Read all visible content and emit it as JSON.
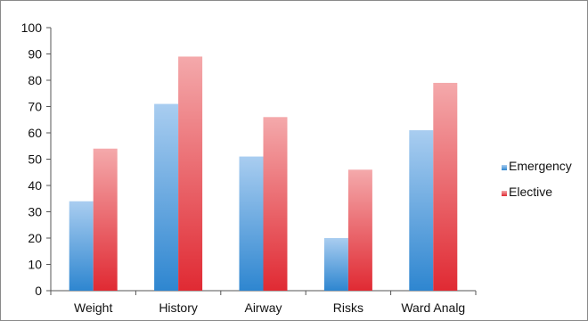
{
  "chart_data": {
    "type": "bar",
    "categories": [
      "Weight",
      "History",
      "Airway",
      "Risks",
      "Ward Analg"
    ],
    "series": [
      {
        "name": "Emergency",
        "values": [
          34,
          71,
          51,
          20,
          61
        ],
        "color_top": "#a9cdf0",
        "color_bottom": "#2e86d0"
      },
      {
        "name": "Elective",
        "values": [
          54,
          89,
          66,
          46,
          79
        ],
        "color_top": "#f4a9ab",
        "color_bottom": "#e02a33"
      }
    ],
    "title": "",
    "xlabel": "",
    "ylabel": "",
    "ylim": [
      0,
      100
    ],
    "yticks": [
      0,
      10,
      20,
      30,
      40,
      50,
      60,
      70,
      80,
      90,
      100
    ],
    "grid": false,
    "legend": "right"
  }
}
